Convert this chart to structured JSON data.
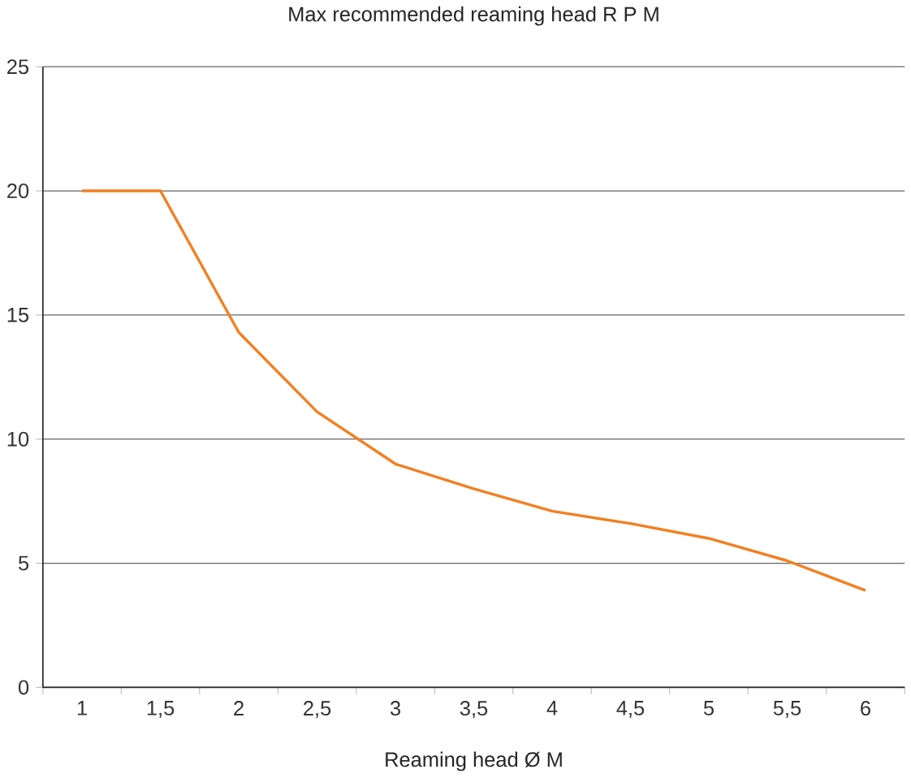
{
  "chart_data": {
    "type": "line",
    "title": "Max recommended reaming head R P M",
    "xlabel": "Reaming head Ø M",
    "categories": [
      "1",
      "1,5",
      "2",
      "2,5",
      "3",
      "3,5",
      "4",
      "4,5",
      "5",
      "5,5",
      "6"
    ],
    "series": [
      {
        "color": "#f28022",
        "values": [
          20,
          20,
          14.3,
          11.1,
          9.0,
          8.0,
          7.1,
          6.6,
          6.0,
          5.1,
          3.9
        ]
      }
    ],
    "ylim": [
      0,
      25
    ],
    "yticks": [
      0,
      5,
      10,
      15,
      20,
      25
    ],
    "grid": "y",
    "marker": "none",
    "line_style": "solid"
  }
}
